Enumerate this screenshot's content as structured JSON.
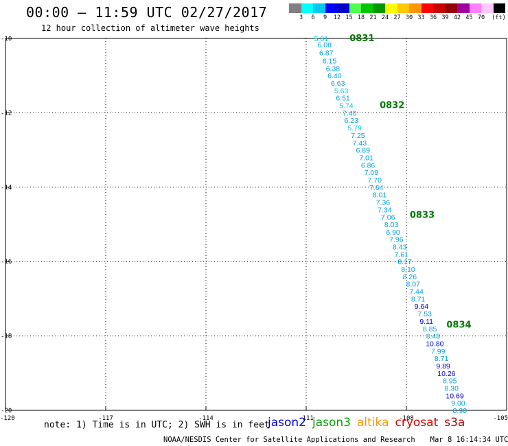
{
  "header": {
    "title": "00:00 – 11:59 UTC 02/27/2017",
    "subtitle": "12 hour collection of altimeter wave heights"
  },
  "legend": {
    "swatches": [
      "#808080",
      "#00ffff",
      "#00c8f0",
      "#0000ff",
      "#0000c8",
      "#50ff50",
      "#00c800",
      "#009600",
      "#ffff00",
      "#ffc800",
      "#ff9600",
      "#ff0000",
      "#c80000",
      "#960000",
      "#a000a0",
      "#ff80ff",
      "#ffc8ff",
      "#000000"
    ],
    "labels": [
      "3",
      "6",
      "9",
      "12",
      "15",
      "18",
      "21",
      "24",
      "27",
      "30",
      "33",
      "36",
      "39",
      "42",
      "45",
      "70",
      "(ft)"
    ]
  },
  "axes": {
    "x_ticks": [
      "-120",
      "-117",
      "-114",
      "-111",
      "-108",
      "-105"
    ],
    "y_ticks": [
      "-10",
      "-12",
      "-14",
      "-16",
      "-18",
      "-20"
    ]
  },
  "map_data": {
    "lon_range": [
      -120,
      -105
    ],
    "lat_range": [
      -20,
      -10
    ],
    "pass_labels": [
      {
        "text": "0831",
        "lon": -109.7,
        "lat": -10.0
      },
      {
        "text": "0832",
        "lon": -108.8,
        "lat": -11.8
      },
      {
        "text": "0833",
        "lon": -107.9,
        "lat": -14.75
      },
      {
        "text": "0834",
        "lon": -106.8,
        "lat": -17.7
      }
    ],
    "points": [
      {
        "text": "5.81",
        "lon": -110.55,
        "lat": -10.0,
        "color": "#00c8f0"
      },
      {
        "text": "6.08",
        "lon": -110.45,
        "lat": -10.17,
        "color": "#00a0dc"
      },
      {
        "text": "6.87",
        "lon": -110.4,
        "lat": -10.38,
        "color": "#00a0dc"
      },
      {
        "text": "6.15",
        "lon": -110.3,
        "lat": -10.6,
        "color": "#00a0dc"
      },
      {
        "text": "6.38",
        "lon": -110.2,
        "lat": -10.8,
        "color": "#00a0dc"
      },
      {
        "text": "6.40",
        "lon": -110.15,
        "lat": -11.0,
        "color": "#00a0dc"
      },
      {
        "text": "6.63",
        "lon": -110.05,
        "lat": -11.2,
        "color": "#00a0dc"
      },
      {
        "text": "5.63",
        "lon": -109.95,
        "lat": -11.4,
        "color": "#00c8f0"
      },
      {
        "text": "6.51",
        "lon": -109.9,
        "lat": -11.6,
        "color": "#00a0dc"
      },
      {
        "text": "5.74",
        "lon": -109.8,
        "lat": -11.8,
        "color": "#00c8f0"
      },
      {
        "text": "7.40",
        "lon": -109.7,
        "lat": -12.0,
        "color": "#00a0dc"
      },
      {
        "text": "6.23",
        "lon": -109.65,
        "lat": -12.2,
        "color": "#00a0dc"
      },
      {
        "text": "5.79",
        "lon": -109.55,
        "lat": -12.4,
        "color": "#00c8f0"
      },
      {
        "text": "7.25",
        "lon": -109.45,
        "lat": -12.6,
        "color": "#00a0dc"
      },
      {
        "text": "7.43",
        "lon": -109.4,
        "lat": -12.8,
        "color": "#00a0dc"
      },
      {
        "text": "6.89",
        "lon": -109.3,
        "lat": -13.0,
        "color": "#00a0dc"
      },
      {
        "text": "7.01",
        "lon": -109.2,
        "lat": -13.2,
        "color": "#00a0dc"
      },
      {
        "text": "6.86",
        "lon": -109.15,
        "lat": -13.4,
        "color": "#00a0dc"
      },
      {
        "text": "7.09",
        "lon": -109.05,
        "lat": -13.6,
        "color": "#00a0dc"
      },
      {
        "text": "7.70",
        "lon": -108.95,
        "lat": -13.8,
        "color": "#00a0dc"
      },
      {
        "text": "7.64",
        "lon": -108.9,
        "lat": -14.0,
        "color": "#00a0dc"
      },
      {
        "text": "8.01",
        "lon": -108.8,
        "lat": -14.2,
        "color": "#00a0dc"
      },
      {
        "text": "7.36",
        "lon": -108.7,
        "lat": -14.4,
        "color": "#00a0dc"
      },
      {
        "text": "7.34",
        "lon": -108.65,
        "lat": -14.6,
        "color": "#00a0dc"
      },
      {
        "text": "7.06",
        "lon": -108.55,
        "lat": -14.8,
        "color": "#00a0dc"
      },
      {
        "text": "8.03",
        "lon": -108.45,
        "lat": -15.0,
        "color": "#00a0dc"
      },
      {
        "text": "6.90",
        "lon": -108.4,
        "lat": -15.2,
        "color": "#00a0dc"
      },
      {
        "text": "7.96",
        "lon": -108.3,
        "lat": -15.4,
        "color": "#00a0dc"
      },
      {
        "text": "8.43",
        "lon": -108.2,
        "lat": -15.6,
        "color": "#00a0dc"
      },
      {
        "text": "7.61",
        "lon": -108.15,
        "lat": -15.8,
        "color": "#00a0dc"
      },
      {
        "text": "8.17",
        "lon": -108.05,
        "lat": -16.0,
        "color": "#00a0dc"
      },
      {
        "text": "8.10",
        "lon": -107.95,
        "lat": -16.2,
        "color": "#00a0dc"
      },
      {
        "text": "8.26",
        "lon": -107.9,
        "lat": -16.4,
        "color": "#00a0dc"
      },
      {
        "text": "8.07",
        "lon": -107.8,
        "lat": -16.6,
        "color": "#00a0dc"
      },
      {
        "text": "7.44",
        "lon": -107.7,
        "lat": -16.8,
        "color": "#00a0dc"
      },
      {
        "text": "8.71",
        "lon": -107.65,
        "lat": -17.0,
        "color": "#00a0dc"
      },
      {
        "text": "9.64",
        "lon": -107.55,
        "lat": -17.2,
        "color": "#0000c8"
      },
      {
        "text": "7.53",
        "lon": -107.45,
        "lat": -17.4,
        "color": "#00a0dc"
      },
      {
        "text": "9.11",
        "lon": -107.4,
        "lat": -17.6,
        "color": "#0000c8"
      },
      {
        "text": "8.85",
        "lon": -107.3,
        "lat": -17.8,
        "color": "#00a0dc"
      },
      {
        "text": "8.48",
        "lon": -107.2,
        "lat": -18.0,
        "color": "#00a0dc"
      },
      {
        "text": "10.80",
        "lon": -107.15,
        "lat": -18.2,
        "color": "#0000c8"
      },
      {
        "text": "7.99",
        "lon": -107.05,
        "lat": -18.4,
        "color": "#00a0dc"
      },
      {
        "text": "8.71",
        "lon": -106.95,
        "lat": -18.6,
        "color": "#00a0dc"
      },
      {
        "text": "9.89",
        "lon": -106.9,
        "lat": -18.8,
        "color": "#0000c8"
      },
      {
        "text": "10.26",
        "lon": -106.8,
        "lat": -19.0,
        "color": "#0000c8"
      },
      {
        "text": "8.95",
        "lon": -106.7,
        "lat": -19.2,
        "color": "#00a0dc"
      },
      {
        "text": "8.30",
        "lon": -106.65,
        "lat": -19.4,
        "color": "#00a0dc"
      },
      {
        "text": "10.69",
        "lon": -106.55,
        "lat": -19.6,
        "color": "#0000c8"
      },
      {
        "text": "9.00",
        "lon": -106.45,
        "lat": -19.8,
        "color": "#00a0dc"
      },
      {
        "text": "8.90",
        "lon": -106.4,
        "lat": -20.0,
        "color": "#00a0dc"
      }
    ]
  },
  "note": "note: 1) Time is in UTC; 2) SWH is in feet",
  "satellites": [
    {
      "name": "jason2",
      "color": "#0000e0"
    },
    {
      "name": "jason3",
      "color": "#00a000"
    },
    {
      "name": "altika",
      "color": "#ff9900"
    },
    {
      "name": "cryosat",
      "color": "#d00000"
    },
    {
      "name": "s3a",
      "color": "#a00000"
    }
  ],
  "footer": {
    "credit": "NOAA/NESDIS Center for Satellite Applications and Research",
    "timestamp": "Mar  8 16:14:34 UTC 2017"
  }
}
